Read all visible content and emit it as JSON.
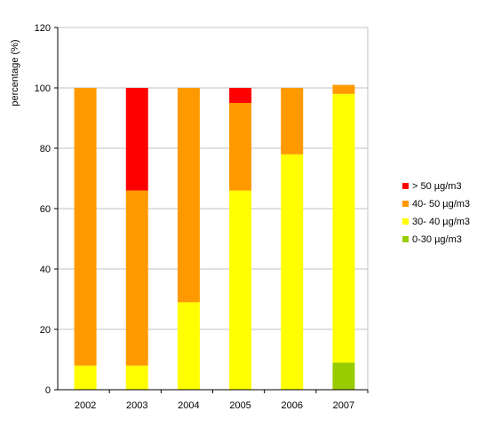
{
  "chart_data": {
    "type": "bar",
    "stacked": true,
    "categories": [
      "2002",
      "2003",
      "2004",
      "2005",
      "2006",
      "2007"
    ],
    "series": [
      {
        "name": "0-30 µg/m3",
        "color": "#99CC00",
        "values": [
          0,
          0,
          0,
          0,
          0,
          9
        ]
      },
      {
        "name": "30- 40 µg/m3",
        "color": "#FFFF00",
        "values": [
          8,
          8,
          29,
          66,
          78,
          89
        ]
      },
      {
        "name": "40- 50 µg/m3",
        "color": "#FF9900",
        "values": [
          92,
          58,
          71,
          29,
          22,
          3
        ]
      },
      {
        "name": "> 50 µg/m3",
        "color": "#FF0000",
        "values": [
          0,
          34,
          0,
          5,
          0,
          0
        ]
      }
    ],
    "legend_order": [
      "> 50 µg/m3",
      "40- 50 µg/m3",
      "30- 40 µg/m3",
      "0-30 µg/m3"
    ],
    "ylabel": "percentage (%)",
    "ylim": [
      0,
      120
    ],
    "yticks": [
      "0",
      "20",
      "40",
      "60",
      "80",
      "100",
      "120"
    ],
    "grid": true,
    "legend_position": "right"
  }
}
